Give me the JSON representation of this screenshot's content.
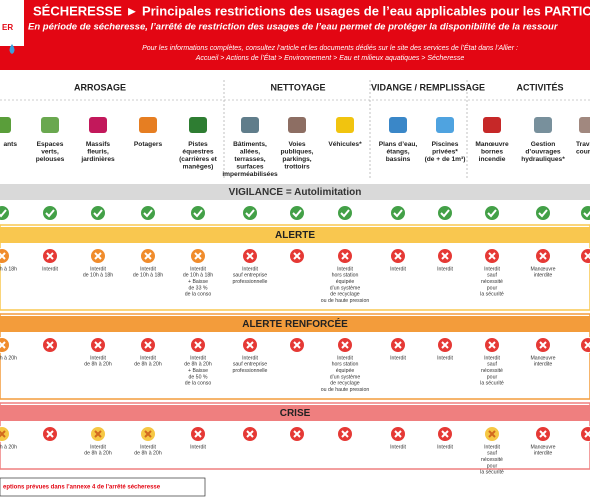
{
  "header": {
    "logo": "ER",
    "title": "SÉCHERESSE ► Principales restrictions des usages de l’eau applicables pour les PARTICU",
    "subtitle": "En période de sécheresse, l’arrêté de restriction des usages de l’eau permet de protéger la disponibilité de la ressour",
    "info": "Pour les informations complètes, consultez l’article et les documents dédiés sur le site des services de l’État dans l’Allier :",
    "breadcrumb": "Accueil > Actions de l’État > Environnement > Eau et milieux aquatiques > Sécheresse"
  },
  "groups": [
    "ARROSAGE",
    "NETTOYAGE",
    "VIDANGE / REMPLISSAGE",
    "ACTIVITÉS"
  ],
  "columns": [
    {
      "label": [
        "ants"
      ]
    },
    {
      "label": [
        "Espaces",
        "verts,",
        "pelouses"
      ]
    },
    {
      "label": [
        "Massifs",
        "fleuris,",
        "jardinières"
      ]
    },
    {
      "label": [
        "Potagers"
      ]
    },
    {
      "label": [
        "Pistes",
        "équestres",
        "(carrières et",
        "manèges)"
      ]
    },
    {
      "label": [
        "Bâtiments,",
        "allées,",
        "terrasses,",
        "surfaces",
        "imperméabilisées"
      ]
    },
    {
      "label": [
        "Voies",
        "publiques,",
        "parkings,",
        "trottoirs"
      ]
    },
    {
      "label": [
        "Véhicules*"
      ]
    },
    {
      "label": [
        "Plans d’eau,",
        "étangs,",
        "bassins"
      ]
    },
    {
      "label": [
        "Piscines",
        "privées*",
        "(de + de 1m³)"
      ]
    },
    {
      "label": [
        "Manœuvre",
        "bornes",
        "incendie"
      ]
    },
    {
      "label": [
        "Gestion",
        "d’ouvrages",
        "hydrauliques*"
      ]
    },
    {
      "label": [
        "Trava",
        "cours"
      ]
    }
  ],
  "rows": [
    {
      "title": "VIGILANCE = Autolimitation",
      "color": "#d9d9d9",
      "text_color": "#333333",
      "cells": [
        {
          "icon": "check"
        },
        {
          "icon": "check"
        },
        {
          "icon": "check"
        },
        {
          "icon": "check"
        },
        {
          "icon": "check"
        },
        {
          "icon": "check"
        },
        {
          "icon": "check"
        },
        {
          "icon": "check"
        },
        {
          "icon": "check"
        },
        {
          "icon": "check"
        },
        {
          "icon": "check"
        },
        {
          "icon": "check"
        },
        {
          "icon": "check"
        }
      ]
    },
    {
      "title": "ALERTE",
      "color": "#f9c74f",
      "text_color": "#222222",
      "cells": [
        {
          "icon": "orange",
          "note": [
            "h à 18h"
          ]
        },
        {
          "icon": "red",
          "note": [
            "Interdit"
          ]
        },
        {
          "icon": "orange",
          "note": [
            "Interdit",
            "de 10h à 18h"
          ]
        },
        {
          "icon": "orange",
          "note": [
            "Interdit",
            "de 10h à 18h"
          ]
        },
        {
          "icon": "orange",
          "note": [
            "Interdit",
            "de 10h à 18h",
            "+ Baisse",
            "de 33 %",
            "de la conso"
          ]
        },
        {
          "icon": "red",
          "note": [
            "Interdit",
            "sauf entreprise",
            "professionnelle"
          ]
        },
        {
          "icon": "red"
        },
        {
          "icon": "red",
          "note": [
            "Interdit",
            "hors station",
            "équipée",
            "d’un système",
            "de recyclage",
            "ou de haute pression"
          ]
        },
        {
          "icon": "red",
          "note": [
            "Interdit"
          ]
        },
        {
          "icon": "red",
          "note": [
            "Interdit"
          ]
        },
        {
          "icon": "red",
          "note": [
            "Interdit",
            "sauf",
            "nécessité",
            "pour",
            "la sécurité"
          ]
        },
        {
          "icon": "red",
          "note": [
            "Manœuvre",
            "interdite"
          ]
        },
        {
          "icon": "red"
        }
      ]
    },
    {
      "title": "ALERTE RENFORCÉE",
      "color": "#f39c3b",
      "text_color": "#222222",
      "cells": [
        {
          "icon": "orange",
          "note": [
            "h à 20h"
          ]
        },
        {
          "icon": "red"
        },
        {
          "icon": "red",
          "note": [
            "Interdit",
            "de 8h à 20h"
          ]
        },
        {
          "icon": "red",
          "note": [
            "Interdit",
            "de 8h à 20h"
          ]
        },
        {
          "icon": "red",
          "note": [
            "Interdit",
            "de 8h à 20h",
            "+ Baisse",
            "de 50 %",
            "de la conso"
          ]
        },
        {
          "icon": "red",
          "note": [
            "Interdit",
            "sauf entreprise",
            "professionnelle"
          ]
        },
        {
          "icon": "red"
        },
        {
          "icon": "red",
          "note": [
            "Interdit",
            "hors station",
            "équipée",
            "d’un système",
            "de recyclage",
            "ou de haute pression"
          ]
        },
        {
          "icon": "red",
          "note": [
            "Interdit"
          ]
        },
        {
          "icon": "red",
          "note": [
            "Interdit"
          ]
        },
        {
          "icon": "red",
          "note": [
            "Interdit",
            "sauf",
            "nécessité",
            "pour",
            "la sécurité"
          ]
        },
        {
          "icon": "red",
          "note": [
            "Manœuvre",
            "interdite"
          ]
        },
        {
          "icon": "red"
        }
      ]
    },
    {
      "title": "CRISE",
      "color": "#ef7f7f",
      "text_color": "#222222",
      "cells": [
        {
          "icon": "yellow",
          "note": [
            "h à 20h"
          ]
        },
        {
          "icon": "red"
        },
        {
          "icon": "yellow",
          "note": [
            "Interdit",
            "de 8h à 20h"
          ]
        },
        {
          "icon": "yellow",
          "note": [
            "Interdit",
            "de 8h à 20h"
          ]
        },
        {
          "icon": "red",
          "note": [
            "Interdit"
          ]
        },
        {
          "icon": "red"
        },
        {
          "icon": "red"
        },
        {
          "icon": "red"
        },
        {
          "icon": "red",
          "note": [
            "Interdit"
          ]
        },
        {
          "icon": "red",
          "note": [
            "Interdit"
          ]
        },
        {
          "icon": "yellow",
          "note": [
            "Interdit",
            "sauf",
            "nécessité",
            "pour",
            "la sécurité"
          ]
        },
        {
          "icon": "red",
          "note": [
            "Manœuvre",
            "interdite"
          ]
        },
        {
          "icon": "red"
        }
      ]
    }
  ],
  "footer": "eptions prévues dans l’annexe 4 de l’arrêté sécheresse"
}
